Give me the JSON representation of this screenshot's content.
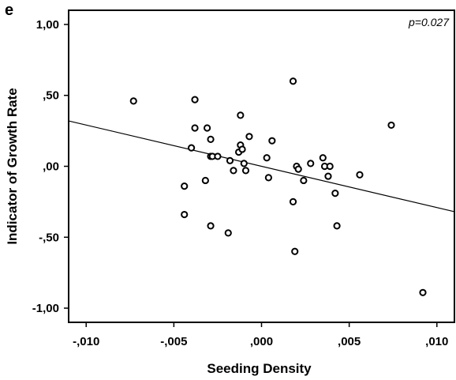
{
  "panel_label": "e",
  "chart_data": {
    "type": "scatter",
    "title": "",
    "xlabel": "Seeding Density",
    "ylabel": "Indicator of Growth Rate",
    "xlim": [
      -0.011,
      0.011
    ],
    "ylim": [
      -1.1,
      1.1
    ],
    "x_ticks": [
      -0.01,
      -0.005,
      0.0,
      0.005,
      0.01
    ],
    "x_tick_labels": [
      "-,010",
      "-,005",
      ",000",
      ",005",
      ",010"
    ],
    "y_ticks": [
      1.0,
      0.5,
      0.0,
      -0.5,
      -1.0
    ],
    "y_tick_labels": [
      "1,00",
      ",50",
      ",00",
      "-,50",
      "-1,00"
    ],
    "grid": false,
    "annotation": "p=0.027",
    "marker": "open-circle",
    "points": [
      {
        "x": -0.0073,
        "y": 0.46
      },
      {
        "x": -0.0038,
        "y": 0.47
      },
      {
        "x": -0.0038,
        "y": 0.27
      },
      {
        "x": -0.004,
        "y": 0.13
      },
      {
        "x": -0.0044,
        "y": -0.14
      },
      {
        "x": -0.0044,
        "y": -0.34
      },
      {
        "x": -0.0031,
        "y": 0.27
      },
      {
        "x": -0.0029,
        "y": 0.19
      },
      {
        "x": -0.0029,
        "y": 0.07
      },
      {
        "x": -0.0028,
        "y": 0.07
      },
      {
        "x": -0.0025,
        "y": 0.07
      },
      {
        "x": -0.0032,
        "y": -0.1
      },
      {
        "x": -0.0029,
        "y": -0.42
      },
      {
        "x": -0.0019,
        "y": -0.47
      },
      {
        "x": -0.0018,
        "y": 0.04
      },
      {
        "x": -0.0016,
        "y": -0.03
      },
      {
        "x": -0.0013,
        "y": 0.1
      },
      {
        "x": -0.0012,
        "y": 0.15
      },
      {
        "x": -0.0011,
        "y": 0.12
      },
      {
        "x": -0.0012,
        "y": 0.36
      },
      {
        "x": -0.0007,
        "y": 0.21
      },
      {
        "x": -0.001,
        "y": 0.02
      },
      {
        "x": -0.0009,
        "y": -0.03
      },
      {
        "x": 0.0003,
        "y": 0.06
      },
      {
        "x": 0.0006,
        "y": 0.18
      },
      {
        "x": 0.0004,
        "y": -0.08
      },
      {
        "x": 0.0018,
        "y": 0.6
      },
      {
        "x": 0.002,
        "y": 0.0
      },
      {
        "x": 0.0021,
        "y": -0.02
      },
      {
        "x": 0.0024,
        "y": -0.1
      },
      {
        "x": 0.0028,
        "y": 0.02
      },
      {
        "x": 0.0018,
        "y": -0.25
      },
      {
        "x": 0.0019,
        "y": -0.6
      },
      {
        "x": 0.0035,
        "y": 0.06
      },
      {
        "x": 0.0036,
        "y": 0.0
      },
      {
        "x": 0.0038,
        "y": -0.07
      },
      {
        "x": 0.0039,
        "y": 0.0
      },
      {
        "x": 0.0042,
        "y": -0.19
      },
      {
        "x": 0.0043,
        "y": -0.42
      },
      {
        "x": 0.0056,
        "y": -0.06
      },
      {
        "x": 0.0074,
        "y": 0.29
      },
      {
        "x": 0.0092,
        "y": -0.89
      }
    ],
    "regression_line": {
      "x": [
        -0.011,
        0.011
      ],
      "y": [
        0.32,
        -0.32
      ]
    }
  }
}
